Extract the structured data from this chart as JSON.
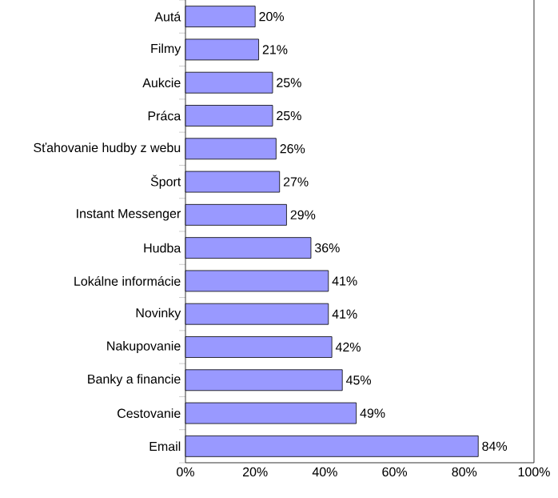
{
  "chart_data": {
    "type": "bar",
    "orientation": "horizontal",
    "categories": [
      "Autá",
      "Filmy",
      "Aukcie",
      "Práca",
      "Sťahovanie hudby z webu",
      "Šport",
      "Instant Messenger",
      "Hudba",
      "Lokálne informácie",
      "Novinky",
      "Nakupovanie",
      "Banky a financie",
      "Cestovanie",
      "Email"
    ],
    "values": [
      20,
      21,
      25,
      25,
      26,
      27,
      29,
      36,
      41,
      41,
      42,
      45,
      49,
      84
    ],
    "value_labels": [
      "20%",
      "21%",
      "25%",
      "25%",
      "26%",
      "27%",
      "29%",
      "36%",
      "41%",
      "41%",
      "42%",
      "45%",
      "49%",
      "84%"
    ],
    "color": "#9999ff",
    "xlim": [
      0,
      100
    ],
    "xticks": [
      {
        "value": 0,
        "label": "0%"
      },
      {
        "value": 20,
        "label": "20%"
      },
      {
        "value": 40,
        "label": "40%"
      },
      {
        "value": 60,
        "label": "60%"
      },
      {
        "value": 80,
        "label": "80%"
      },
      {
        "value": 100,
        "label": "100%"
      }
    ],
    "grid": false
  }
}
